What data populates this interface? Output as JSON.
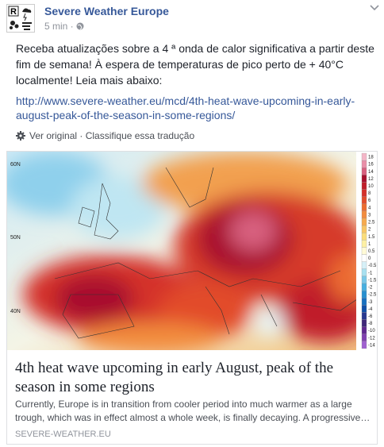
{
  "post": {
    "author": "Severe Weather Europe",
    "time": "5 min",
    "text_lines": [
      "Receba atualizações sobre a 4 ª onda de calor significativa a partir deste",
      "fim de semana! À espera de temperaturas de pico perto de + 40°C",
      "localmente! Leia mais abaixo:"
    ],
    "link_lines": [
      "http://www.severe-weather.eu/mcd/4th-heat-wave-upcoming-in-early-",
      "august-peak-of-the-season-in-some-regions/"
    ],
    "translate": "Ver original",
    "rate": "Classifique essa tradução"
  },
  "card": {
    "map": {
      "lat_labels": [
        "60N",
        "50N",
        "40N"
      ],
      "colorbar": {
        "ticks": [
          18,
          16,
          14,
          12,
          10,
          8,
          6,
          4,
          3,
          2.5,
          2,
          1.5,
          1,
          0.5,
          0,
          -0.5,
          -1,
          -1.5,
          -2,
          -2.5,
          -3,
          -4,
          -6,
          -8,
          -10,
          -12,
          -14
        ],
        "colors": [
          "#f4b6c8",
          "#e98fa8",
          "#d8607f",
          "#a8102e",
          "#c01e2a",
          "#d4302a",
          "#e24c2c",
          "#ec6c30",
          "#f28c3e",
          "#f6aa4e",
          "#f8c664",
          "#fbdd7a",
          "#fdf0a4",
          "#fffad6",
          "#ffffff",
          "#d6f0f8",
          "#a8e0f0",
          "#78c8e8",
          "#48b0e0",
          "#2890d0",
          "#1870c0",
          "#1050a8",
          "#283890",
          "#402878",
          "#602890",
          "#8040b0",
          "#a060d0"
        ]
      }
    },
    "title_lines": [
      "4th heat wave upcoming in early August, peak of the",
      "season in some regions"
    ],
    "description_lines": [
      "Currently, Europe is in transition from cooler period into much warmer as a large",
      "trough, which was in effect almost a whole week, is finally decaying. A progressive…"
    ],
    "domain": "SEVERE-WEATHER.EU"
  }
}
